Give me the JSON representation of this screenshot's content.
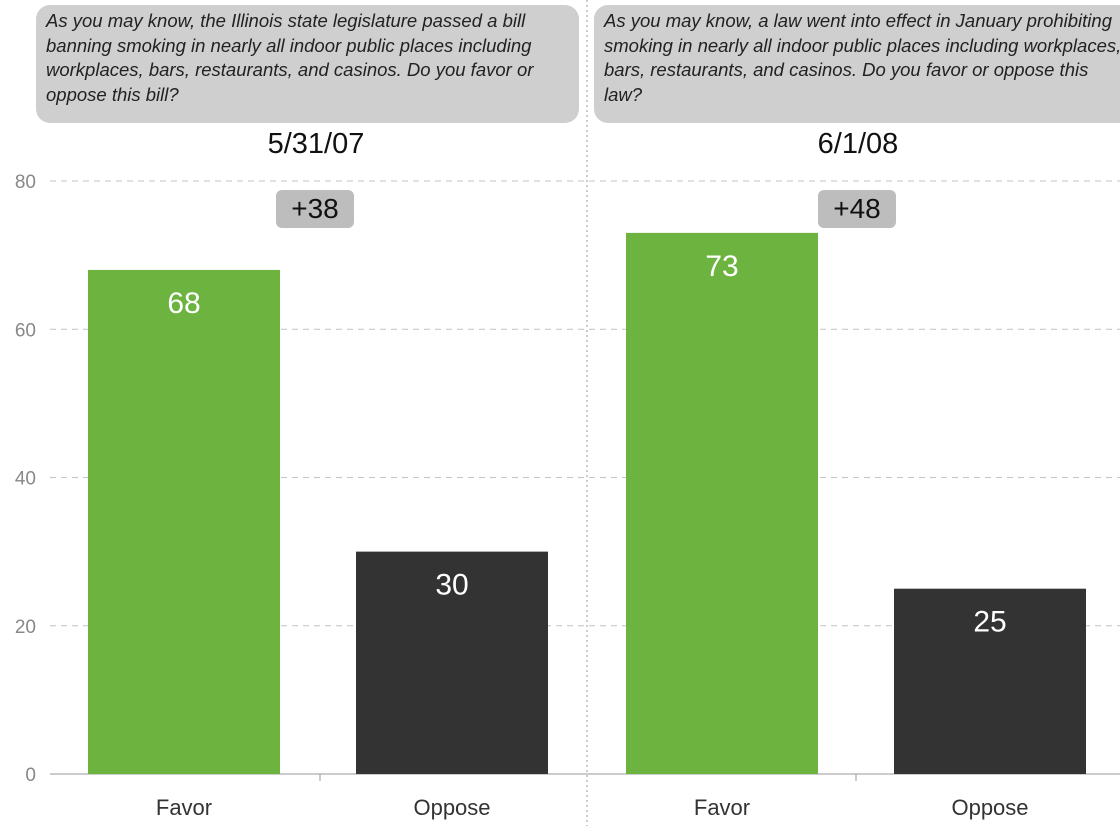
{
  "chart_data": {
    "type": "bar",
    "ylim": [
      0,
      80
    ],
    "yticks": [
      0,
      20,
      40,
      60,
      80
    ],
    "grid": true,
    "categories": [
      "Favor",
      "Oppose"
    ],
    "colors": {
      "Favor": "#6db33f",
      "Oppose": "#333333"
    },
    "panels": [
      {
        "question": "As you may know, the Illinois state legislature passed a bill banning smoking in nearly all indoor public places including workplaces, bars, restaurants, and casinos. Do you favor or oppose this bill?",
        "title": "5/31/07",
        "difference": "+38",
        "values": [
          68,
          30
        ]
      },
      {
        "question": "As you may know, a law went into effect in January prohibiting smoking in nearly all indoor public places including workplaces, bars, restaurants, and casinos. Do you favor or oppose this law?",
        "title": "6/1/08",
        "difference": "+48",
        "values": [
          73,
          25
        ]
      }
    ]
  }
}
